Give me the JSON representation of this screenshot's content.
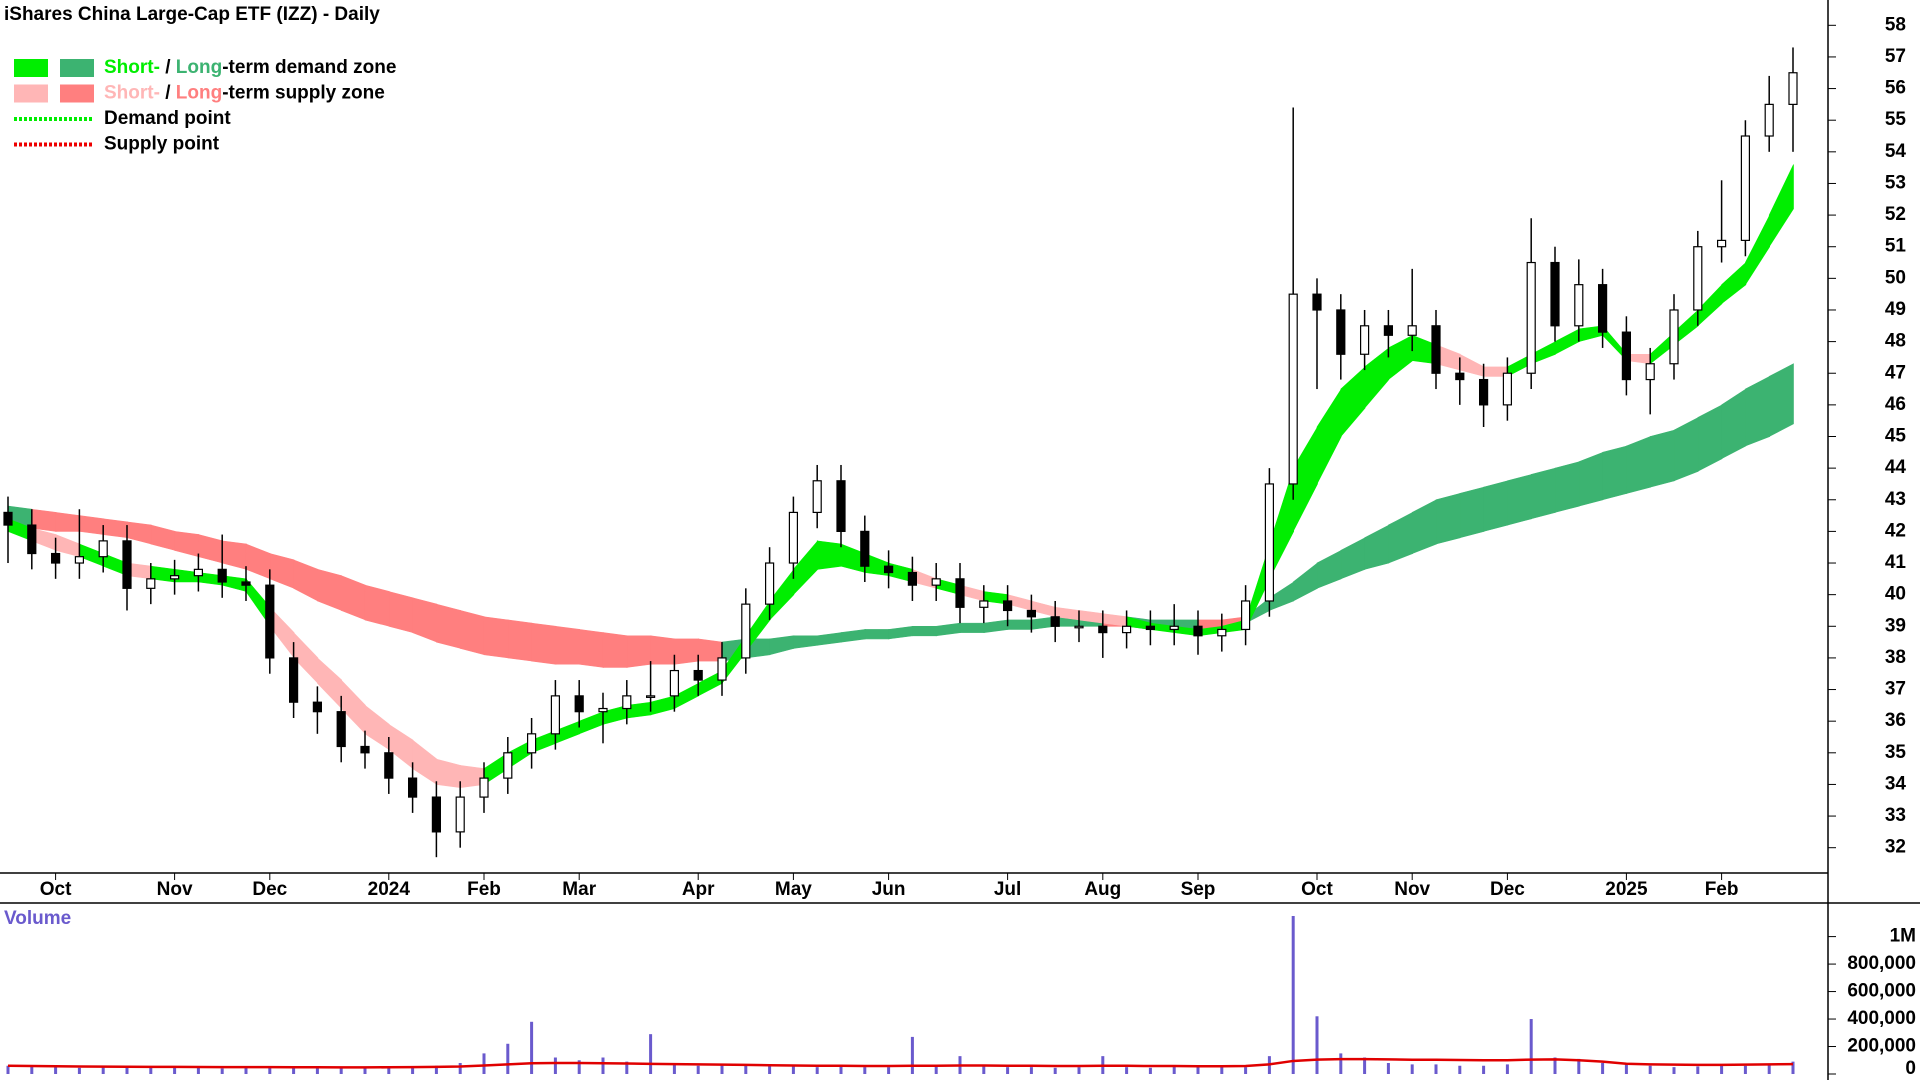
{
  "chart_data": [
    {
      "type": "candlestick",
      "title": "iShares China Large-Cap ETF (IZZ) - Daily",
      "legend": [
        {
          "parts": [
            "Short-",
            " / ",
            "Long",
            "-term demand zone"
          ],
          "colors": [
            "#00ee00",
            "#000000",
            "#3cb371",
            "#000000"
          ],
          "swatches": [
            "#00ee00",
            "#3cb371"
          ]
        },
        {
          "parts": [
            "Short-",
            " / ",
            "Long",
            "-term supply zone"
          ],
          "colors": [
            "#ffb6b6",
            "#000000",
            "#ff7f7f",
            "#000000"
          ],
          "swatches": [
            "#ffb6b6",
            "#ff7f7f"
          ]
        },
        {
          "parts": [
            "Demand point"
          ],
          "colors": [
            "#000000"
          ],
          "line": "#00ee00"
        },
        {
          "parts": [
            "Supply point"
          ],
          "colors": [
            "#000000"
          ],
          "line": "#ee0000"
        }
      ],
      "categories": [
        null,
        null,
        "Oct",
        null,
        null,
        null,
        null,
        "Nov",
        null,
        null,
        null,
        "Dec",
        null,
        null,
        null,
        null,
        "2024",
        null,
        null,
        null,
        "Feb",
        null,
        null,
        null,
        "Mar",
        null,
        null,
        null,
        null,
        "Apr",
        null,
        null,
        null,
        "May",
        null,
        null,
        null,
        "Jun",
        null,
        null,
        null,
        null,
        "Jul",
        null,
        null,
        null,
        "Aug",
        null,
        null,
        null,
        "Sep",
        null,
        null,
        null,
        null,
        "Oct",
        null,
        null,
        null,
        "Nov",
        null,
        null,
        null,
        "Dec",
        null,
        null,
        null,
        null,
        "2025",
        null,
        null,
        null,
        "Feb",
        null,
        null,
        null
      ],
      "open": [
        42.6,
        42.2,
        41.3,
        41.0,
        41.2,
        41.7,
        40.2,
        40.5,
        40.6,
        40.8,
        40.4,
        40.3,
        38.0,
        36.6,
        36.3,
        35.2,
        35.0,
        34.2,
        33.6,
        32.5,
        33.6,
        34.2,
        35.0,
        35.6,
        36.8,
        36.3,
        36.4,
        36.8,
        36.8,
        37.6,
        37.3,
        38.0,
        39.7,
        41.0,
        42.6,
        43.6,
        42.0,
        40.9,
        40.7,
        40.3,
        40.5,
        39.6,
        39.8,
        39.5,
        39.3,
        39.0,
        39.0,
        38.8,
        39.0,
        38.9,
        39.0,
        38.7,
        38.9,
        39.8,
        43.5,
        49.5,
        49.0,
        47.6,
        48.5,
        48.2,
        48.5,
        47.0,
        46.8,
        46.0,
        47.0,
        50.5,
        48.5,
        49.8,
        48.3,
        46.8,
        47.3,
        49.0,
        51.0,
        51.2,
        54.5,
        55.5
      ],
      "high": [
        43.1,
        42.7,
        41.8,
        42.7,
        42.2,
        42.2,
        41.0,
        41.1,
        41.3,
        41.9,
        40.9,
        40.8,
        38.5,
        37.1,
        36.8,
        35.7,
        35.5,
        34.7,
        34.1,
        34.1,
        34.7,
        35.5,
        36.1,
        37.3,
        37.3,
        36.9,
        37.3,
        37.9,
        38.1,
        38.1,
        38.5,
        40.2,
        41.5,
        43.1,
        44.1,
        44.1,
        42.5,
        41.4,
        41.2,
        41.0,
        41.0,
        40.3,
        40.3,
        40.0,
        39.8,
        39.5,
        39.5,
        39.5,
        39.5,
        39.7,
        39.5,
        39.4,
        40.3,
        44.0,
        55.4,
        50.0,
        49.5,
        49.0,
        49.0,
        50.3,
        49.0,
        47.5,
        47.3,
        47.5,
        51.9,
        51.0,
        50.6,
        50.3,
        48.8,
        47.8,
        49.5,
        51.5,
        53.1,
        55.0,
        56.4,
        57.3
      ],
      "low": [
        41.0,
        40.8,
        40.5,
        40.5,
        40.7,
        39.5,
        39.7,
        40.0,
        40.1,
        39.9,
        39.8,
        37.5,
        36.1,
        35.6,
        34.7,
        34.5,
        33.7,
        33.1,
        31.7,
        32.0,
        33.1,
        33.7,
        34.5,
        35.1,
        35.8,
        35.3,
        35.9,
        36.3,
        36.3,
        36.8,
        36.8,
        37.5,
        39.2,
        40.5,
        42.1,
        41.5,
        40.4,
        40.2,
        39.8,
        39.8,
        39.1,
        39.1,
        39.0,
        38.8,
        38.5,
        38.5,
        38.0,
        38.3,
        38.4,
        38.4,
        38.1,
        38.2,
        38.4,
        39.3,
        43.0,
        46.5,
        46.8,
        47.1,
        47.5,
        47.7,
        46.5,
        46.0,
        45.3,
        45.5,
        46.5,
        48.0,
        48.0,
        47.8,
        46.3,
        45.7,
        46.8,
        48.5,
        50.5,
        50.7,
        54.0,
        54.0
      ],
      "close": [
        42.2,
        41.3,
        41.0,
        41.2,
        41.7,
        40.2,
        40.5,
        40.6,
        40.8,
        40.4,
        40.3,
        38.0,
        36.6,
        36.3,
        35.2,
        35.0,
        34.2,
        33.6,
        32.5,
        33.6,
        34.2,
        35.0,
        35.6,
        36.8,
        36.3,
        36.4,
        36.8,
        36.8,
        37.6,
        37.3,
        38.0,
        39.7,
        41.0,
        42.6,
        43.6,
        42.0,
        40.9,
        40.7,
        40.3,
        40.5,
        39.6,
        39.8,
        39.5,
        39.3,
        39.0,
        39.0,
        38.8,
        39.0,
        38.9,
        39.0,
        38.7,
        38.9,
        39.8,
        43.5,
        49.5,
        49.0,
        47.6,
        48.5,
        48.2,
        48.5,
        47.0,
        46.8,
        46.0,
        47.0,
        50.5,
        48.5,
        49.8,
        48.3,
        46.8,
        47.3,
        49.0,
        51.0,
        51.2,
        54.5,
        55.5,
        56.5
      ],
      "zones": {
        "long": {
          "upper": [
            42.8,
            42.7,
            42.6,
            42.5,
            42.4,
            42.3,
            42.2,
            42.0,
            41.9,
            41.7,
            41.6,
            41.3,
            41.1,
            40.8,
            40.6,
            40.3,
            40.1,
            39.9,
            39.7,
            39.5,
            39.3,
            39.2,
            39.1,
            39.0,
            38.9,
            38.8,
            38.7,
            38.7,
            38.6,
            38.6,
            38.5,
            38.6,
            38.6,
            38.7,
            38.7,
            38.8,
            38.9,
            38.9,
            39.0,
            39.0,
            39.1,
            39.1,
            39.2,
            39.2,
            39.3,
            39.3,
            39.3,
            39.3,
            39.2,
            39.2,
            39.2,
            39.2,
            39.3,
            39.9,
            40.4,
            41.0,
            41.4,
            41.8,
            42.2,
            42.6,
            43.0,
            43.2,
            43.4,
            43.6,
            43.8,
            44.0,
            44.2,
            44.5,
            44.7,
            45.0,
            45.2,
            45.6,
            46.0,
            46.5,
            46.9,
            47.3
          ],
          "lower": [
            42.2,
            42.1,
            42.0,
            42.0,
            41.9,
            41.8,
            41.6,
            41.4,
            41.2,
            41.0,
            40.8,
            40.5,
            40.2,
            39.8,
            39.5,
            39.2,
            39.0,
            38.8,
            38.5,
            38.3,
            38.1,
            38.0,
            37.9,
            37.8,
            37.8,
            37.7,
            37.7,
            37.8,
            37.8,
            37.9,
            37.9,
            38.0,
            38.1,
            38.3,
            38.4,
            38.5,
            38.6,
            38.6,
            38.7,
            38.7,
            38.8,
            38.8,
            38.9,
            38.9,
            39.0,
            39.0,
            39.0,
            39.0,
            38.9,
            38.9,
            38.9,
            39.0,
            39.1,
            39.5,
            39.8,
            40.2,
            40.5,
            40.8,
            41.0,
            41.3,
            41.6,
            41.8,
            42.0,
            42.2,
            42.4,
            42.6,
            42.8,
            43.0,
            43.2,
            43.4,
            43.6,
            43.9,
            44.3,
            44.7,
            45.0,
            45.4
          ]
        },
        "short": {
          "upper": [
            42.4,
            42.1,
            41.9,
            41.6,
            41.3,
            41.0,
            40.9,
            40.8,
            40.7,
            40.6,
            40.5,
            39.6,
            38.8,
            38.0,
            37.3,
            36.5,
            35.9,
            35.4,
            34.8,
            34.6,
            34.5,
            35.0,
            35.4,
            35.7,
            36.0,
            36.3,
            36.5,
            36.6,
            36.8,
            37.2,
            37.6,
            38.7,
            39.8,
            40.8,
            41.7,
            41.6,
            41.3,
            41.0,
            40.8,
            40.5,
            40.3,
            40.1,
            40.0,
            39.8,
            39.6,
            39.5,
            39.4,
            39.3,
            39.1,
            39.0,
            38.9,
            39.0,
            39.2,
            41.6,
            44.0,
            45.3,
            46.5,
            47.2,
            47.8,
            48.2,
            47.9,
            47.6,
            47.2,
            47.2,
            47.6,
            48.0,
            48.4,
            48.5,
            47.6,
            47.6,
            48.3,
            49.0,
            49.8,
            50.5,
            52.0,
            53.6
          ],
          "lower": [
            42.0,
            41.7,
            41.4,
            41.2,
            40.9,
            40.6,
            40.5,
            40.4,
            40.4,
            40.3,
            40.1,
            39.0,
            38.0,
            37.2,
            36.4,
            35.6,
            35.1,
            34.5,
            34.0,
            33.9,
            34.0,
            34.5,
            35.0,
            35.3,
            35.6,
            35.9,
            36.1,
            36.2,
            36.4,
            36.8,
            37.2,
            38.2,
            39.2,
            40.0,
            40.8,
            40.9,
            40.7,
            40.6,
            40.4,
            40.2,
            40.0,
            39.8,
            39.7,
            39.5,
            39.3,
            39.2,
            39.1,
            39.0,
            38.9,
            38.8,
            38.7,
            38.8,
            38.9,
            40.5,
            42.0,
            43.5,
            45.0,
            45.9,
            46.8,
            47.4,
            47.3,
            47.1,
            46.9,
            46.9,
            47.3,
            47.6,
            48.0,
            48.2,
            47.4,
            47.3,
            47.9,
            48.5,
            49.2,
            49.8,
            51.0,
            52.2
          ]
        }
      },
      "zone_colors": {
        "demand": {
          "short": "#00ee00",
          "long": "#3cb371"
        },
        "supply": {
          "short": "#ffb6b6",
          "long": "#ff7f7f"
        }
      },
      "candle_colors": {
        "up": "#ffffff",
        "down": "#000000"
      },
      "ylim": [
        31.2,
        58.8
      ],
      "yticks": [
        32,
        33,
        34,
        35,
        36,
        37,
        38,
        39,
        40,
        41,
        42,
        43,
        44,
        45,
        46,
        47,
        48,
        49,
        50,
        51,
        52,
        53,
        54,
        55,
        56,
        57,
        58
      ]
    },
    {
      "type": "bar",
      "title": "Volume",
      "color": "#6a5acd",
      "values": [
        60000,
        55000,
        50000,
        45000,
        50000,
        45000,
        48000,
        55000,
        45000,
        40000,
        45000,
        50000,
        45000,
        40000,
        48000,
        50000,
        45000,
        50000,
        60000,
        80000,
        150000,
        220000,
        380000,
        120000,
        100000,
        120000,
        90000,
        290000,
        80000,
        60000,
        70000,
        60000,
        55000,
        60000,
        50000,
        55000,
        50000,
        50000,
        270000,
        60000,
        130000,
        60000,
        50000,
        50000,
        45000,
        50000,
        130000,
        50000,
        45000,
        55000,
        50000,
        55000,
        50000,
        130000,
        1150000,
        420000,
        150000,
        120000,
        80000,
        70000,
        70000,
        60000,
        60000,
        70000,
        400000,
        120000,
        110000,
        80000,
        70000,
        60000,
        50000,
        55000,
        60000,
        60000,
        70000,
        90000
      ],
      "average": {
        "color": "#e00000",
        "values": [
          60000,
          58000,
          56000,
          55000,
          54000,
          53000,
          52000,
          52000,
          51000,
          50000,
          50000,
          50000,
          49000,
          49000,
          48000,
          48000,
          49000,
          50000,
          52000,
          55000,
          62000,
          70000,
          78000,
          80000,
          80000,
          78000,
          76000,
          74000,
          72000,
          70000,
          68000,
          66000,
          64000,
          62000,
          60000,
          60000,
          58000,
          58000,
          60000,
          60000,
          62000,
          62000,
          60000,
          60000,
          58000,
          58000,
          60000,
          60000,
          58000,
          58000,
          56000,
          56000,
          58000,
          70000,
          95000,
          105000,
          108000,
          108000,
          106000,
          104000,
          104000,
          102000,
          100000,
          100000,
          105000,
          106000,
          100000,
          90000,
          75000,
          70000,
          68000,
          66000,
          66000,
          68000,
          70000,
          72000
        ]
      },
      "ylim": [
        0,
        1230000
      ],
      "yticks": [
        0,
        {
          "value": 200000,
          "label": "200,000"
        },
        {
          "value": 400000,
          "label": "400,000"
        },
        {
          "value": 600000,
          "label": "600,000"
        },
        {
          "value": 800000,
          "label": "800,000"
        },
        {
          "value": 1000000,
          "label": "1M"
        }
      ]
    }
  ]
}
